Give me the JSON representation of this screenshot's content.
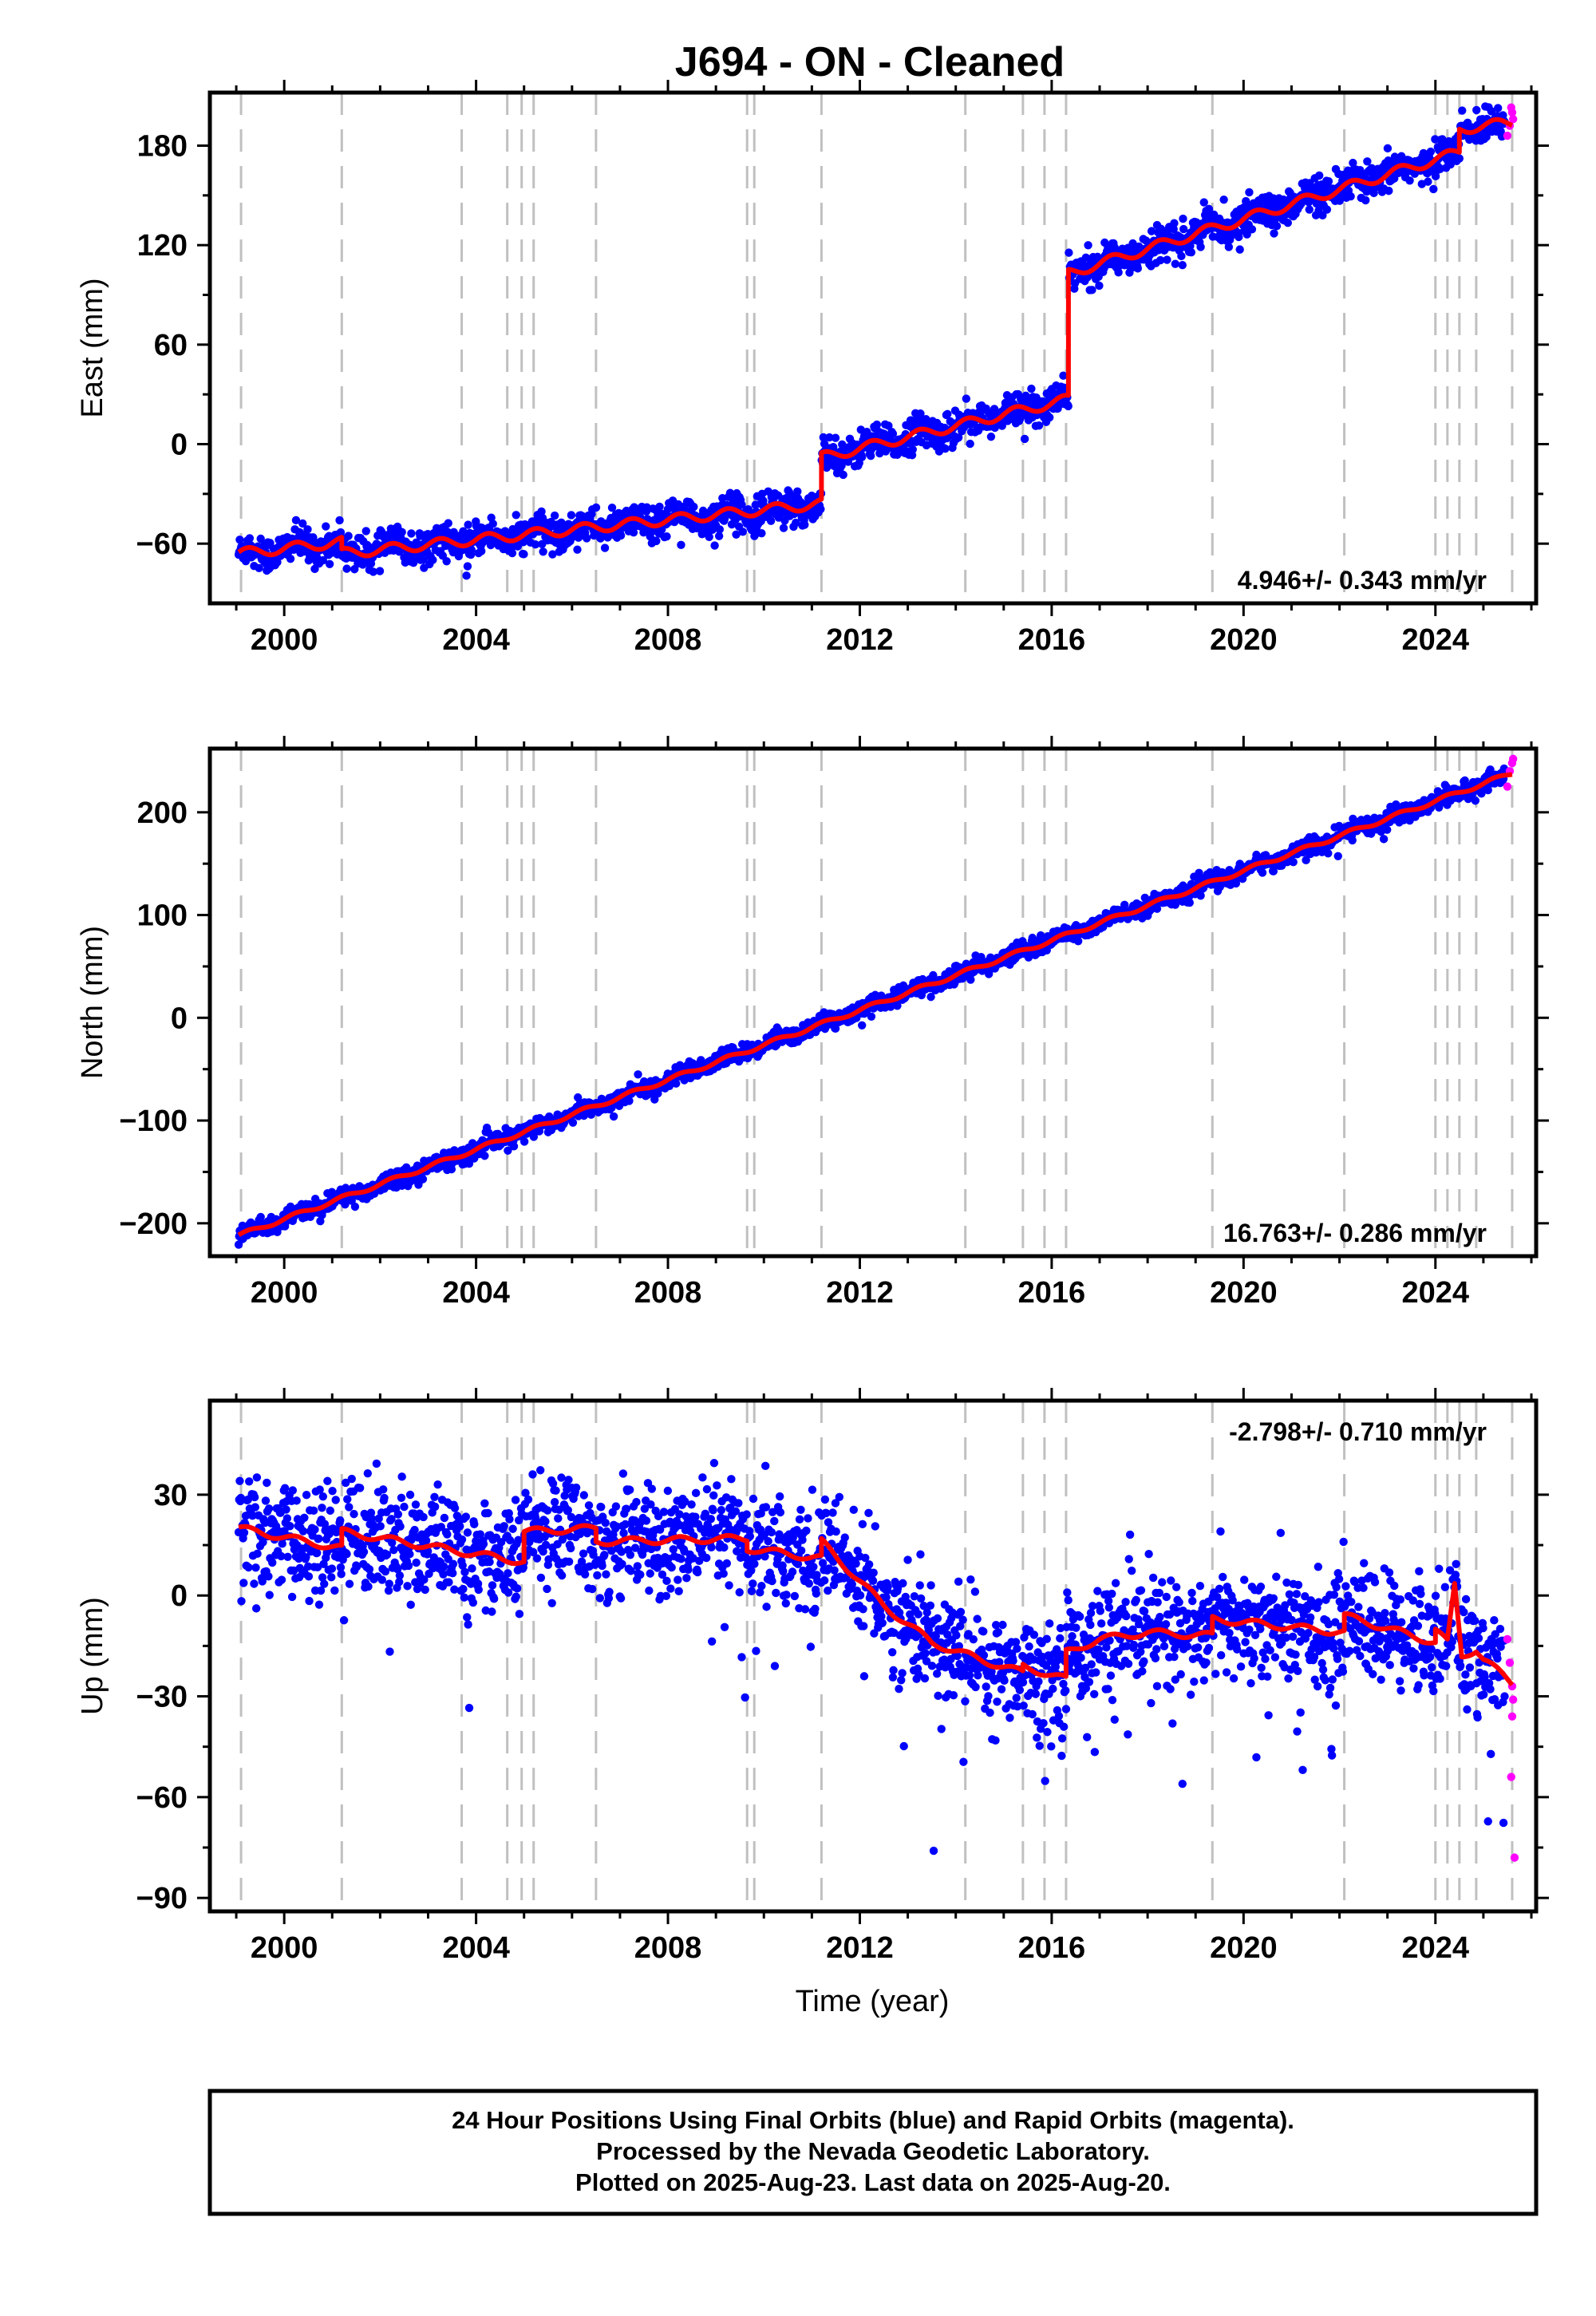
{
  "title": "J694  - ON - Cleaned",
  "colors": {
    "final_orbits": "#0000ff",
    "rapid_orbits": "#ff00ff",
    "model": "#ff0000",
    "event_lines": "#c0c0c0",
    "frame": "#000000"
  },
  "footer": {
    "line1": "24 Hour Positions Using Final Orbits (blue) and Rapid Orbits (magenta).",
    "line2": "Processed by the Nevada Geodetic Laboratory.",
    "line3": "Plotted on 2025-Aug-23. Last data on 2025-Aug-20."
  },
  "chart_data": [
    {
      "type": "scatter",
      "panel": "east",
      "ylabel": "East (mm)",
      "xlabel": "",
      "rate_text": "4.946+/- 0.343 mm/yr",
      "rate_position": "bottom-right",
      "xlim": [
        1998.45,
        2026.1
      ],
      "ylim": [
        -96,
        212
      ],
      "xticks": [
        2000,
        2004,
        2008,
        2012,
        2016,
        2020,
        2024
      ],
      "xtick_labels": [
        "2000",
        "2004",
        "2008",
        "2012",
        "2016",
        "2020",
        "2024"
      ],
      "yticks": [
        -60,
        0,
        60,
        120,
        180
      ],
      "ytick_labels": [
        "−60",
        "0",
        "60",
        "120",
        "180"
      ],
      "grid": false,
      "event_lines": [
        1999.1,
        2001.2,
        2003.7,
        2004.65,
        2004.95,
        2005.2,
        2006.5,
        2009.65,
        2009.8,
        2011.2,
        2014.2,
        2015.4,
        2015.85,
        2016.3,
        2019.35,
        2022.1,
        2024.0,
        2024.25,
        2024.5,
        2024.85,
        2025.6
      ],
      "model": {
        "segments": [
          {
            "x": [
              1999.05,
              2001.2
            ],
            "y": [
              -66,
              -59
            ]
          },
          {
            "x": [
              2001.2,
              2011.2
            ],
            "y": [
              -66,
              -36
            ]
          },
          {
            "x": [
              2011.2,
              2016.35
            ],
            "y": [
              -8,
              27
            ]
          },
          {
            "x": [
              2016.35,
              2024.5
            ],
            "y": [
              103,
              176
            ]
          },
          {
            "x": [
              2024.5,
              2025.6
            ],
            "y": [
              190,
              194
            ]
          }
        ],
        "seasonal_amplitude": 3
      },
      "scatter_noise": 5,
      "rapid_points": {
        "x": [
          2025.5,
          2025.55,
          2025.6,
          2025.62,
          2025.58
        ],
        "y": [
          186,
          192,
          200,
          196,
          203
        ]
      }
    },
    {
      "type": "scatter",
      "panel": "north",
      "ylabel": "North (mm)",
      "xlabel": "",
      "rate_text": "16.763+/- 0.286 mm/yr",
      "rate_position": "bottom-right",
      "xlim": [
        1998.45,
        2026.1
      ],
      "ylim": [
        -232,
        262
      ],
      "xticks": [
        2000,
        2004,
        2008,
        2012,
        2016,
        2020,
        2024
      ],
      "xtick_labels": [
        "2000",
        "2004",
        "2008",
        "2012",
        "2016",
        "2020",
        "2024"
      ],
      "yticks": [
        -200,
        -100,
        0,
        100,
        200
      ],
      "ytick_labels": [
        "−200",
        "−100",
        "0",
        "100",
        "200"
      ],
      "grid": false,
      "event_lines": [
        1999.1,
        2001.2,
        2003.7,
        2004.65,
        2004.95,
        2005.2,
        2006.5,
        2009.65,
        2009.8,
        2011.2,
        2014.2,
        2015.4,
        2015.85,
        2016.3,
        2019.35,
        2022.1,
        2024.0,
        2024.25,
        2024.5,
        2024.85,
        2025.6
      ],
      "model": {
        "segments": [
          {
            "x": [
              1999.05,
              2025.6
            ],
            "y": [
              -212,
              238
            ]
          }
        ],
        "seasonal_amplitude": 2
      },
      "scatter_noise": 4,
      "rapid_points": {
        "x": [
          2025.5,
          2025.55,
          2025.6,
          2025.62
        ],
        "y": [
          225,
          240,
          248,
          252
        ]
      }
    },
    {
      "type": "scatter",
      "panel": "up",
      "ylabel": "Up (mm)",
      "xlabel": "Time (year)",
      "rate_text": "-2.798+/- 0.710 mm/yr",
      "rate_position": "top-right",
      "xlim": [
        1998.45,
        2026.1
      ],
      "ylim": [
        -94,
        58
      ],
      "xticks": [
        2000,
        2004,
        2008,
        2012,
        2016,
        2020,
        2024
      ],
      "xtick_labels": [
        "2000",
        "2004",
        "2008",
        "2012",
        "2016",
        "2020",
        "2024"
      ],
      "yticks": [
        -90,
        -60,
        -30,
        0,
        30
      ],
      "ytick_labels": [
        "−90",
        "−60",
        "−30",
        "0",
        "30"
      ],
      "grid": false,
      "event_lines": [
        1999.1,
        2001.2,
        2003.7,
        2004.65,
        2004.95,
        2005.2,
        2006.5,
        2009.65,
        2009.8,
        2011.2,
        2014.2,
        2015.4,
        2015.85,
        2016.3,
        2019.35,
        2022.1,
        2024.0,
        2024.25,
        2024.5,
        2024.85,
        2025.6
      ],
      "model": {
        "points": {
          "x": [
            1999.05,
            2001.2,
            2001.2,
            2003.7,
            2003.7,
            2005.0,
            2005.0,
            2006.5,
            2006.5,
            2009.65,
            2009.65,
            2011.2,
            2011.2,
            2012.5,
            2013.5,
            2014.5,
            2015.4,
            2015.4,
            2016.3,
            2016.3,
            2017.0,
            2018.0,
            2019.35,
            2019.35,
            2022.1,
            2022.1,
            2024.0,
            2024.0,
            2024.25,
            2024.4,
            2024.55,
            2024.85,
            2025.0,
            2025.6
          ],
          "y": [
            20,
            14,
            19,
            13,
            13,
            10,
            19,
            20,
            16,
            17,
            14,
            11,
            16,
            -3,
            -14,
            -19,
            -23,
            -21,
            -25,
            -17,
            -13,
            -11,
            -12,
            -7,
            -11,
            -6,
            -14,
            -10,
            -14,
            3,
            -18,
            -16,
            -19,
            -26
          ]
        },
        "seasonal_amplitude": 1
      },
      "scatter_noise": 8,
      "rapid_points": {
        "x": [
          2025.5,
          2025.55,
          2025.6,
          2025.62,
          2025.58,
          2025.65,
          2025.6
        ],
        "y": [
          -13,
          -20,
          -27,
          -31,
          -54,
          -78,
          -36
        ]
      }
    }
  ]
}
